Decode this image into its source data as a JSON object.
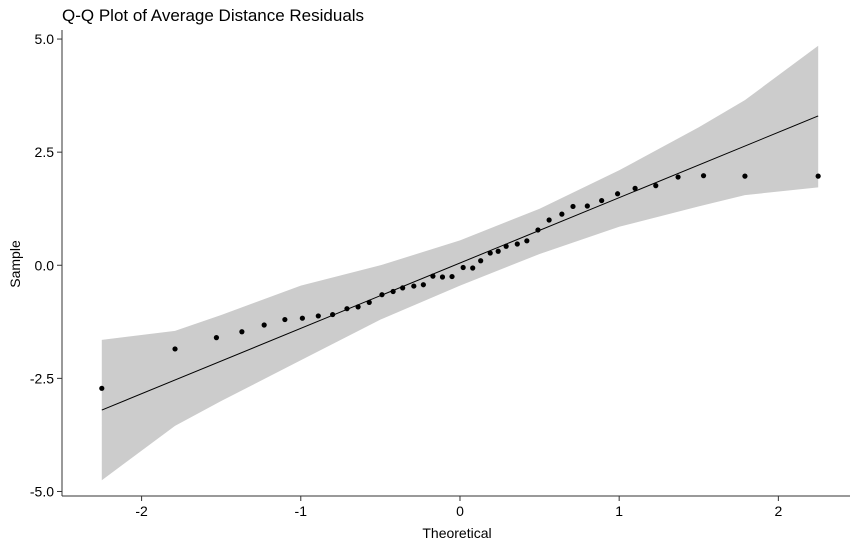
{
  "chart_data": {
    "type": "scatter",
    "title": "Q-Q Plot of Average Distance Residuals",
    "xlabel": "Theoretical",
    "ylabel": "Sample",
    "xlim": [
      -2.5,
      2.45
    ],
    "ylim": [
      -5.1,
      5.2
    ],
    "xticks": [
      -2,
      -1,
      0,
      1,
      2
    ],
    "xtick_labels": [
      "-2",
      "-1",
      "0",
      "1",
      "2"
    ],
    "yticks": [
      -5.0,
      -2.5,
      0.0,
      2.5,
      5.0
    ],
    "ytick_labels": [
      "-5.0",
      "-2.5",
      "0.0",
      "2.5",
      "5.0"
    ],
    "grid": false,
    "points": {
      "x": [
        -2.25,
        -1.79,
        -1.53,
        -1.37,
        -1.23,
        -1.1,
        -0.99,
        -0.89,
        -0.8,
        -0.71,
        -0.64,
        -0.57,
        -0.49,
        -0.42,
        -0.36,
        -0.29,
        -0.23,
        -0.17,
        -0.11,
        -0.05,
        0.02,
        0.08,
        0.13,
        0.19,
        0.24,
        0.29,
        0.36,
        0.42,
        0.49,
        0.56,
        0.64,
        0.71,
        0.8,
        0.89,
        0.99,
        1.1,
        1.23,
        1.37,
        1.53,
        1.79,
        2.25
      ],
      "y": [
        -2.72,
        -1.85,
        -1.6,
        -1.47,
        -1.32,
        -1.2,
        -1.17,
        -1.12,
        -1.09,
        -0.96,
        -0.92,
        -0.82,
        -0.65,
        -0.58,
        -0.5,
        -0.46,
        -0.43,
        -0.24,
        -0.26,
        -0.25,
        -0.05,
        -0.06,
        0.1,
        0.27,
        0.31,
        0.42,
        0.47,
        0.54,
        0.78,
        1.0,
        1.13,
        1.3,
        1.31,
        1.43,
        1.58,
        1.7,
        1.76,
        1.95,
        1.98,
        1.97,
        1.97
      ]
    },
    "reference_line": {
      "x": [
        -2.25,
        2.25
      ],
      "y": [
        -3.2,
        3.3
      ]
    },
    "confidence_band": {
      "x": [
        -2.25,
        -1.79,
        -1.5,
        -1.0,
        -0.5,
        0.0,
        0.5,
        1.0,
        1.5,
        1.79,
        2.25
      ],
      "lower": [
        -4.75,
        -3.55,
        -3.0,
        -2.1,
        -1.2,
        -0.45,
        0.25,
        0.85,
        1.3,
        1.55,
        1.72
      ],
      "upper": [
        -1.65,
        -1.45,
        -1.1,
        -0.45,
        0.0,
        0.55,
        1.25,
        2.1,
        3.05,
        3.65,
        4.85
      ]
    },
    "colors": {
      "points": "#000000",
      "line": "#000000",
      "band": "#cccccc",
      "axis": "#333333"
    }
  }
}
